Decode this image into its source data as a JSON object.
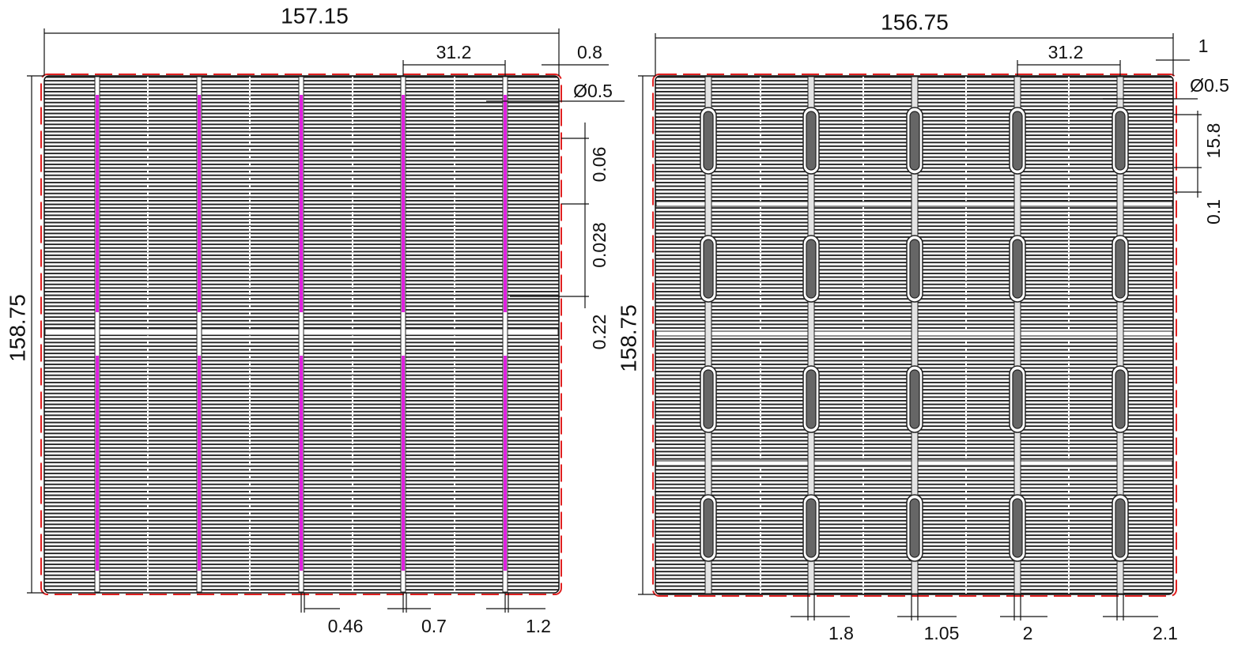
{
  "left": {
    "width": "157.15",
    "height": "158.75",
    "pitch": "31.2",
    "edge": "0.8",
    "hole": "Ø0.5",
    "finger_gap": "0.06",
    "finger_width": "0.028",
    "band": "0.22",
    "bottom": [
      "0.46",
      "0.7",
      "1.2"
    ]
  },
  "right": {
    "width": "156.75",
    "height": "158.75",
    "pitch": "31.2",
    "edge": "1",
    "hole": "Ø0.5",
    "pad_length": "15.8",
    "pad_gap": "0.1",
    "bottom": [
      "1.8",
      "1.05",
      "2",
      "2.1"
    ]
  }
}
